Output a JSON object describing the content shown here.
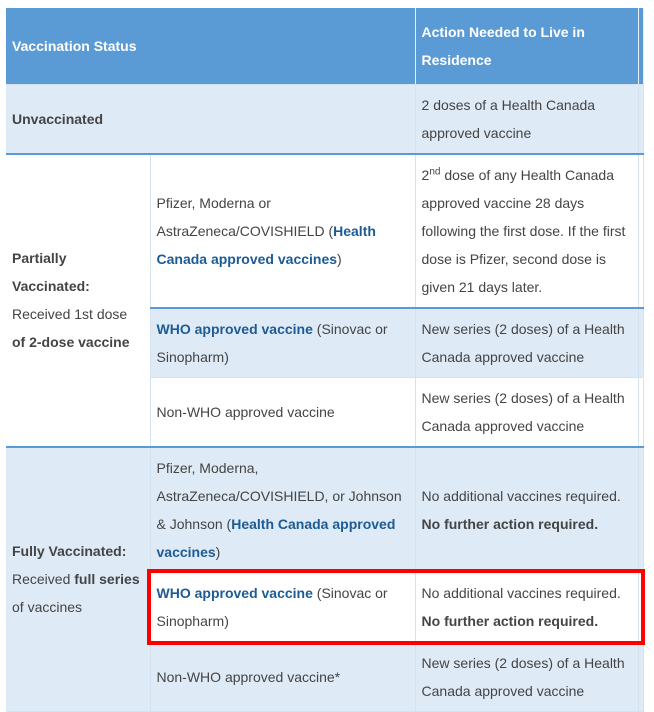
{
  "header": {
    "status": "Vaccination Status",
    "action": "Action Needed to Live in Residence"
  },
  "unvaccinated": {
    "label": "Unvaccinated",
    "action": "2 doses of a Health Canada approved vaccine"
  },
  "partial": {
    "label": "Partially Vaccinated:",
    "sub_pre": "Received 1st dose",
    "sub_bold": "of 2-dose vaccine",
    "rows": [
      {
        "vaccine_pre": "Pfizer, Moderna or AstraZeneca/COVISHIELD (",
        "vaccine_link": "Health Canada approved vaccines",
        "vaccine_post": ")",
        "action_sup": "nd",
        "action_num": "2",
        "action": " dose of any Health Canada approved vaccine 28 days following the first dose. If the first dose is Pfizer, second dose is given 21 days later."
      },
      {
        "vaccine_link": "WHO approved vaccine",
        "vaccine_post": " (Sinovac or Sinopharm)",
        "action": "New series (2 doses) of a Health Canada approved vaccine"
      },
      {
        "vaccine": "Non-WHO approved vaccine",
        "action": "New series (2 doses) of a Health Canada approved vaccine"
      }
    ]
  },
  "full": {
    "label": "Fully Vaccinated:",
    "sub_pre": "Received ",
    "sub_bold": "full series",
    "sub_post": " of vaccines",
    "rows": [
      {
        "vaccine_pre": "Pfizer, Moderna, AstraZeneca/COVISHIELD, or Johnson & Johnson (",
        "vaccine_link": "Health Canada approved vaccines",
        "vaccine_post": ")",
        "action": "No additional vaccines required.",
        "action_bold": "No further action required."
      },
      {
        "vaccine_link": "WHO approved vaccine",
        "vaccine_post": " (Sinovac or Sinopharm)",
        "action": "No additional vaccines required.",
        "action_bold": "No further action required."
      },
      {
        "vaccine": "Non-WHO approved vaccine*",
        "action": "New series (2 doses) of a Health Canada approved vaccine"
      }
    ]
  },
  "colors": {
    "header": "#5b9bd5",
    "row_alt": "#deeaf6",
    "link": "#1d5b95",
    "highlight": "#ff0000"
  }
}
